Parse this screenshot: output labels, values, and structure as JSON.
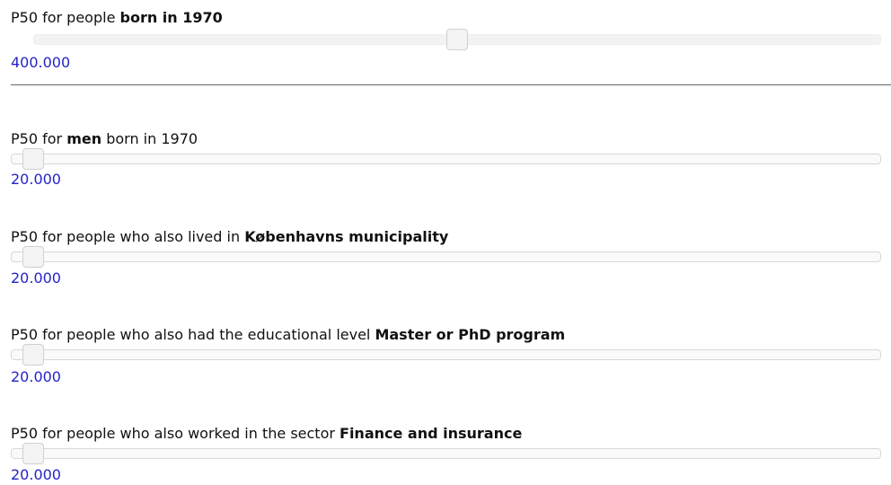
{
  "sliders": [
    {
      "label_before": "P50 for people ",
      "label_bold": "born in 1970",
      "value": "400.000"
    },
    {
      "label_before": "P50 for ",
      "label_bold": "men",
      "label_after": " born in 1970",
      "value": "20.000"
    },
    {
      "label_before": "P50 for people who also lived in ",
      "label_bold": "Københavns municipality",
      "value": "20.000"
    },
    {
      "label_before": "P50 for people who also had the educational level ",
      "label_bold": "Master or PhD program",
      "value": "20.000"
    },
    {
      "label_before": "P50 for people who also worked in the sector ",
      "label_bold": "Finance and insurance",
      "value": "20.000"
    }
  ]
}
